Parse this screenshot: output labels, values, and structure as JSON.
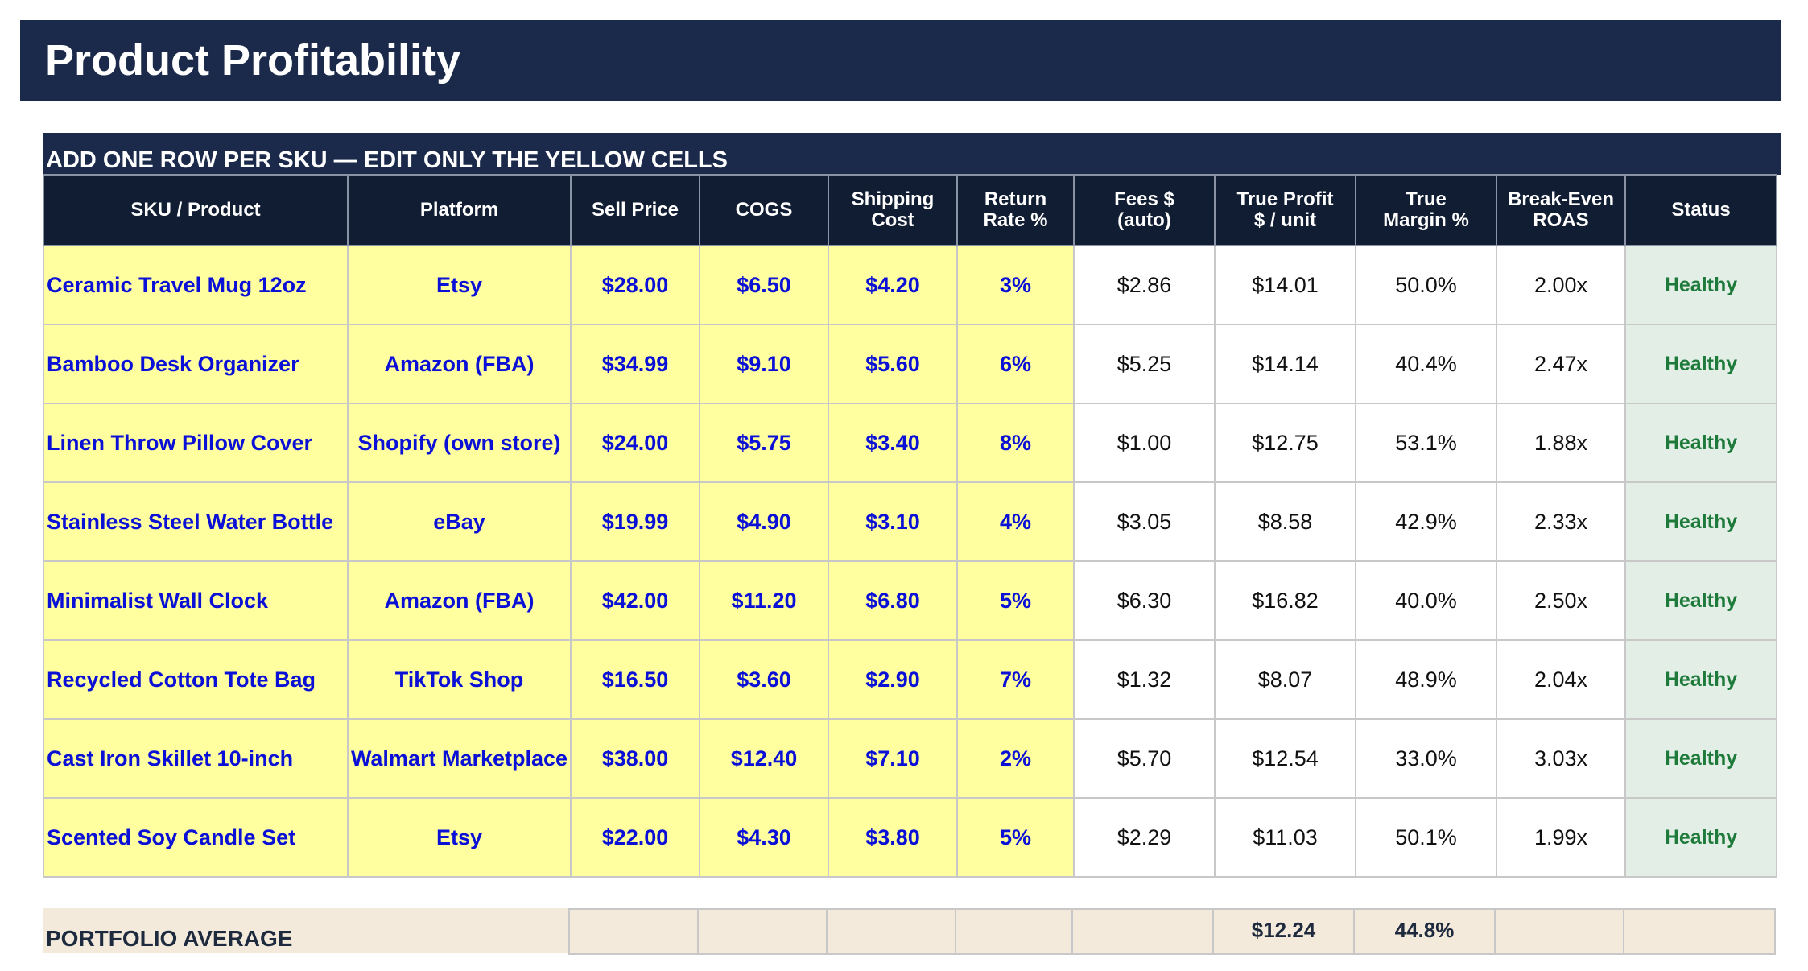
{
  "title": "Product Profitability",
  "instructions": "ADD ONE ROW PER SKU — EDIT ONLY THE YELLOW CELLS",
  "colors": {
    "header_navy": "#1b2a4a",
    "input_yellow": "#ffff9f",
    "input_text_blue": "#0b10d6",
    "status_green": "#1e7a3a",
    "status_bg": "#e3efe6",
    "summary_beige": "#f4eadb"
  },
  "columns": {
    "sku": "SKU / Product",
    "platform": "Platform",
    "sell_price": "Sell Price",
    "cogs": "COGS",
    "shipping_1": "Shipping",
    "shipping_2": "Cost",
    "return_1": "Return",
    "return_2": "Rate %",
    "fees_1": "Fees $",
    "fees_2": "(auto)",
    "profit_1": "True Profit",
    "profit_2": "$ / unit",
    "margin_1": "True",
    "margin_2": "Margin %",
    "roas_1": "Break-Even",
    "roas_2": "ROAS",
    "status": "Status"
  },
  "rows": [
    {
      "sku": "Ceramic Travel Mug 12oz",
      "platform": "Etsy",
      "sell_price": "$28.00",
      "cogs": "$6.50",
      "shipping": "$4.20",
      "return_rate": "3%",
      "fees": "$2.86",
      "profit": "$14.01",
      "margin": "50.0%",
      "roas": "2.00x",
      "status": "Healthy"
    },
    {
      "sku": "Bamboo Desk Organizer",
      "platform": "Amazon (FBA)",
      "sell_price": "$34.99",
      "cogs": "$9.10",
      "shipping": "$5.60",
      "return_rate": "6%",
      "fees": "$5.25",
      "profit": "$14.14",
      "margin": "40.4%",
      "roas": "2.47x",
      "status": "Healthy"
    },
    {
      "sku": "Linen Throw Pillow Cover",
      "platform": "Shopify (own store)",
      "sell_price": "$24.00",
      "cogs": "$5.75",
      "shipping": "$3.40",
      "return_rate": "8%",
      "fees": "$1.00",
      "profit": "$12.75",
      "margin": "53.1%",
      "roas": "1.88x",
      "status": "Healthy"
    },
    {
      "sku": "Stainless Steel Water Bottle",
      "platform": "eBay",
      "sell_price": "$19.99",
      "cogs": "$4.90",
      "shipping": "$3.10",
      "return_rate": "4%",
      "fees": "$3.05",
      "profit": "$8.58",
      "margin": "42.9%",
      "roas": "2.33x",
      "status": "Healthy"
    },
    {
      "sku": "Minimalist Wall Clock",
      "platform": "Amazon (FBA)",
      "sell_price": "$42.00",
      "cogs": "$11.20",
      "shipping": "$6.80",
      "return_rate": "5%",
      "fees": "$6.30",
      "profit": "$16.82",
      "margin": "40.0%",
      "roas": "2.50x",
      "status": "Healthy"
    },
    {
      "sku": "Recycled Cotton Tote Bag",
      "platform": "TikTok Shop",
      "sell_price": "$16.50",
      "cogs": "$3.60",
      "shipping": "$2.90",
      "return_rate": "7%",
      "fees": "$1.32",
      "profit": "$8.07",
      "margin": "48.9%",
      "roas": "2.04x",
      "status": "Healthy"
    },
    {
      "sku": "Cast Iron Skillet 10-inch",
      "platform": "Walmart Marketplace",
      "sell_price": "$38.00",
      "cogs": "$12.40",
      "shipping": "$7.10",
      "return_rate": "2%",
      "fees": "$5.70",
      "profit": "$12.54",
      "margin": "33.0%",
      "roas": "3.03x",
      "status": "Healthy"
    },
    {
      "sku": "Scented Soy Candle Set",
      "platform": "Etsy",
      "sell_price": "$22.00",
      "cogs": "$4.30",
      "shipping": "$3.80",
      "return_rate": "5%",
      "fees": "$2.29",
      "profit": "$11.03",
      "margin": "50.1%",
      "roas": "1.99x",
      "status": "Healthy"
    }
  ],
  "summary": {
    "label": "PORTFOLIO AVERAGE",
    "profit": "$12.24",
    "margin": "44.8%"
  }
}
